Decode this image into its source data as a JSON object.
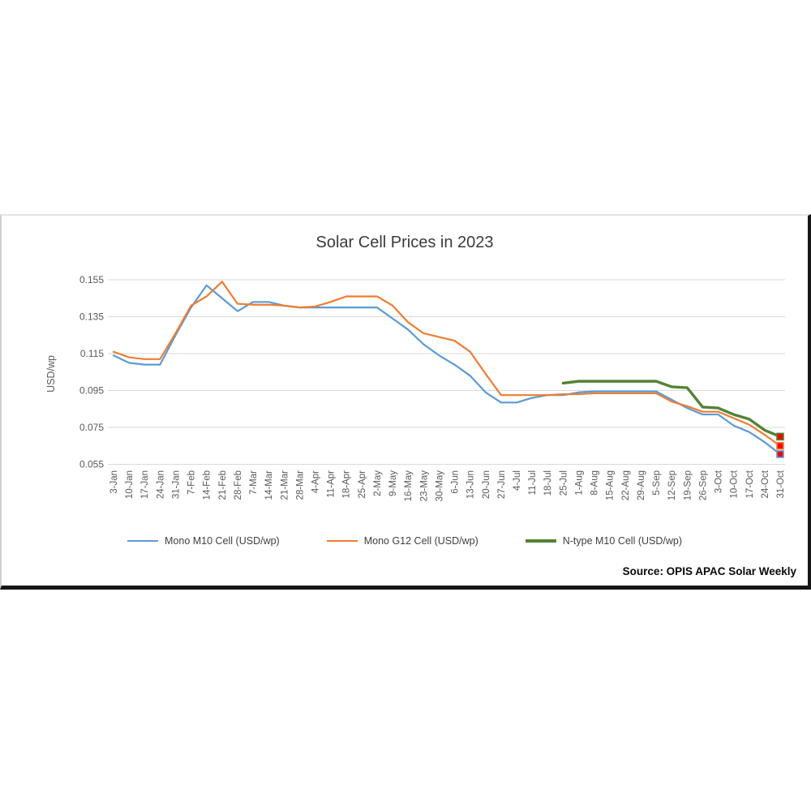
{
  "chart_data": {
    "type": "line",
    "title": "Solar Cell Prices in 2023",
    "ylabel": "USD/wp",
    "source": "Source: OPIS APAC Solar Weekly",
    "ylim": [
      0.055,
      0.155
    ],
    "ytick_labels": [
      "0.155",
      "0.135",
      "0.115",
      "0.095",
      "0.075",
      "0.055"
    ],
    "yticks": [
      0.155,
      0.135,
      0.115,
      0.095,
      0.075,
      0.055
    ],
    "grid": "horizontal",
    "grid_color": "#d9d9d9",
    "tick_text_color": "#595959",
    "legend_position": "bottom",
    "end_marker_fill": "#ff0000",
    "categories": [
      "3-Jan",
      "10-Jan",
      "17-Jan",
      "24-Jan",
      "31-Jan",
      "7-Feb",
      "14-Feb",
      "21-Feb",
      "28-Feb",
      "7-Mar",
      "14-Mar",
      "21-Mar",
      "28-Mar",
      "4-Apr",
      "11-Apr",
      "18-Apr",
      "25-Apr",
      "2-May",
      "9-May",
      "16-May",
      "23-May",
      "30-May",
      "6-Jun",
      "13-Jun",
      "20-Jun",
      "27-Jun",
      "4-Jul",
      "11-Jul",
      "18-Jul",
      "25-Jul",
      "1-Aug",
      "8-Aug",
      "15-Aug",
      "22-Aug",
      "29-Aug",
      "5-Sep",
      "12-Sep",
      "19-Sep",
      "26-Sep",
      "3-Oct",
      "10-Oct",
      "17-Oct",
      "24-Oct",
      "31-Oct"
    ],
    "series": [
      {
        "name": "Mono M10 Cell (USD/wp)",
        "color": "#5b9bd5",
        "line_width": 2.2,
        "values": [
          0.114,
          0.11,
          0.109,
          0.109,
          0.125,
          0.14,
          0.152,
          0.145,
          0.138,
          0.143,
          0.143,
          0.141,
          0.14,
          0.14,
          0.14,
          0.14,
          0.14,
          0.14,
          0.134,
          0.128,
          0.12,
          0.114,
          0.109,
          0.103,
          0.094,
          0.0885,
          0.0885,
          0.091,
          0.0925,
          0.0925,
          0.094,
          0.0945,
          0.0945,
          0.0945,
          0.0945,
          0.0945,
          0.09,
          0.0855,
          0.082,
          0.082,
          0.076,
          0.0725,
          0.067,
          0.0605
        ]
      },
      {
        "name": "Mono G12 Cell (USD/wp)",
        "color": "#ed7d31",
        "line_width": 2.2,
        "values": [
          0.116,
          0.113,
          0.112,
          0.112,
          0.126,
          0.141,
          0.146,
          0.154,
          0.142,
          0.1415,
          0.1415,
          0.141,
          0.14,
          0.1405,
          0.143,
          0.146,
          0.146,
          0.146,
          0.141,
          0.132,
          0.126,
          0.124,
          0.122,
          0.116,
          0.104,
          0.0925,
          0.0925,
          0.0925,
          0.0925,
          0.093,
          0.093,
          0.0935,
          0.0935,
          0.0935,
          0.0935,
          0.0935,
          0.089,
          0.0865,
          0.0835,
          0.0835,
          0.08,
          0.0765,
          0.071,
          0.065
        ]
      },
      {
        "name": "N-type M10 Cell (USD/wp)",
        "color": "#548235",
        "line_width": 3.4,
        "values": [
          null,
          null,
          null,
          null,
          null,
          null,
          null,
          null,
          null,
          null,
          null,
          null,
          null,
          null,
          null,
          null,
          null,
          null,
          null,
          null,
          null,
          null,
          null,
          null,
          null,
          null,
          null,
          null,
          null,
          0.099,
          0.1,
          0.1,
          0.1,
          0.1,
          0.1,
          0.1,
          0.097,
          0.0965,
          0.086,
          0.0855,
          0.082,
          0.0795,
          0.0735,
          0.07
        ]
      }
    ]
  }
}
